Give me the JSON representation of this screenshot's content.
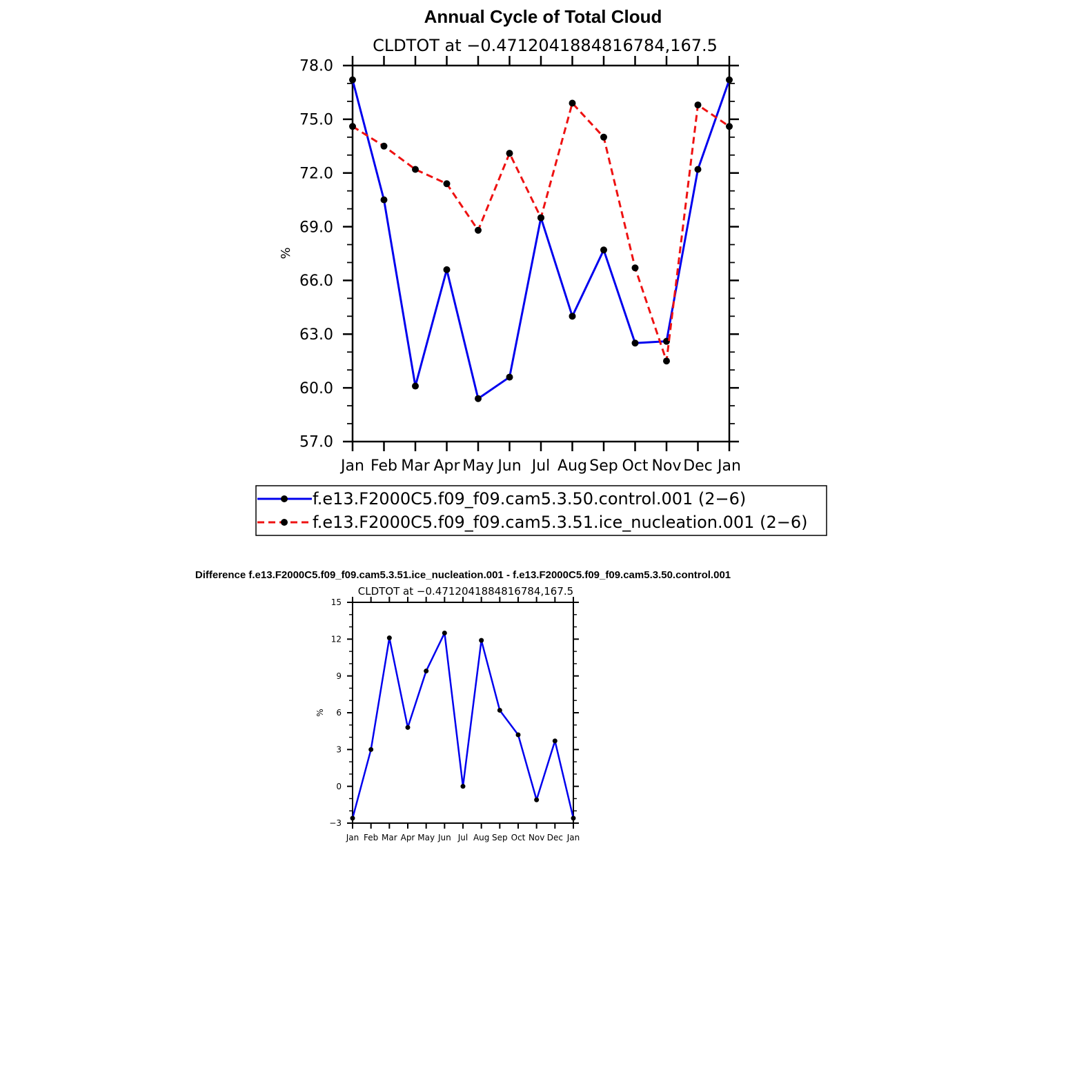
{
  "chart_data": [
    {
      "type": "line",
      "title": "Annual Cycle of Total Cloud",
      "subtitle": "CLDTOT at −0.4712041884816784,167.5",
      "ylabel": "%",
      "ylim": [
        57.0,
        78.0
      ],
      "yticks": [
        "57.0",
        "60.0",
        "63.0",
        "66.0",
        "69.0",
        "72.0",
        "75.0",
        "78.0"
      ],
      "categories": [
        "Jan",
        "Feb",
        "Mar",
        "Apr",
        "May",
        "Jun",
        "Jul",
        "Aug",
        "Sep",
        "Oct",
        "Nov",
        "Dec",
        "Jan"
      ],
      "legend_position": "bottom",
      "grid": false,
      "series": [
        {
          "name": "f.e13.F2000C5.f09_f09.cam5.3.50.control.001 (2−6)",
          "color": "#0000ee",
          "dash": "solid",
          "values": [
            77.2,
            70.5,
            60.1,
            66.6,
            59.4,
            60.6,
            69.5,
            64.0,
            67.7,
            62.5,
            62.6,
            72.2,
            77.2
          ]
        },
        {
          "name": "f.e13.F2000C5.f09_f09.cam5.3.51.ice_nucleation.001 (2−6)",
          "color": "#ee1111",
          "dash": "dashed",
          "values": [
            74.6,
            73.5,
            72.2,
            71.4,
            68.8,
            73.1,
            69.5,
            75.9,
            74.0,
            66.7,
            61.5,
            75.8,
            74.6
          ]
        }
      ]
    },
    {
      "type": "line",
      "title": "Difference f.e13.F2000C5.f09_f09.cam5.3.51.ice_nucleation.001 - f.e13.F2000C5.f09_f09.cam5.3.50.control.001",
      "subtitle": "CLDTOT at −0.4712041884816784,167.5",
      "ylabel": "%",
      "ylim": [
        -3,
        15
      ],
      "yticks": [
        "−3",
        "0",
        "3",
        "6",
        "9",
        "12",
        "15"
      ],
      "categories": [
        "Jan",
        "Feb",
        "Mar",
        "Apr",
        "May",
        "Jun",
        "Jul",
        "Aug",
        "Sep",
        "Oct",
        "Nov",
        "Dec",
        "Jan"
      ],
      "grid": false,
      "series": [
        {
          "color": "#0000ee",
          "values": [
            -2.6,
            3.0,
            12.1,
            4.8,
            9.4,
            12.5,
            0.0,
            11.9,
            6.2,
            4.2,
            -1.1,
            3.7,
            -2.6
          ]
        }
      ]
    }
  ]
}
